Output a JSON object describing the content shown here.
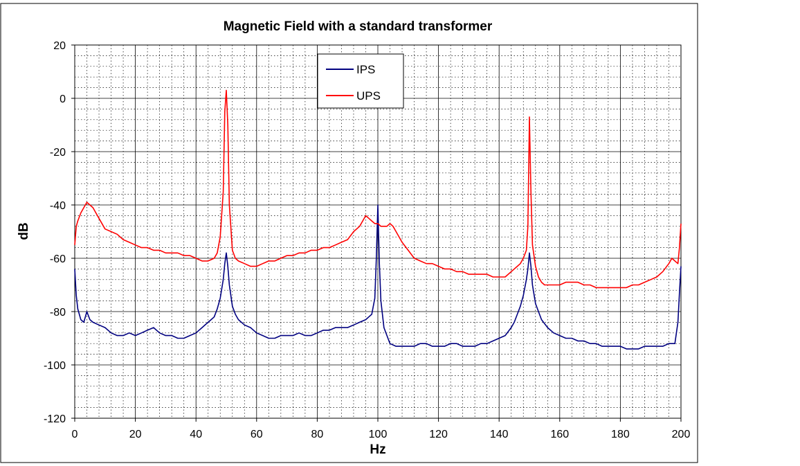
{
  "chart_data": {
    "type": "line",
    "title": "Magnetic Field with a standard transformer",
    "xlabel": "Hz",
    "ylabel": "dB",
    "xlim": [
      0,
      200
    ],
    "ylim": [
      -120,
      20
    ],
    "x_ticks": [
      0,
      20,
      40,
      60,
      80,
      100,
      120,
      140,
      160,
      180,
      200
    ],
    "y_ticks": [
      20,
      0,
      -20,
      -40,
      -60,
      -80,
      -100,
      -120
    ],
    "x_tick_labels": [
      "0",
      "20",
      "40",
      "60",
      "80",
      "100",
      "120",
      "140",
      "160",
      "180",
      "200"
    ],
    "y_tick_labels": [
      "20",
      "0",
      "-20",
      "-40",
      "-60",
      "-80",
      "-100",
      "-120"
    ],
    "grid": "on",
    "legend_position": "top-center",
    "series": [
      {
        "name": "IPS",
        "color": "#000080",
        "x": [
          0,
          0.5,
          1,
          2,
          3,
          4,
          5,
          6,
          8,
          10,
          12,
          14,
          16,
          18,
          20,
          22,
          24,
          26,
          28,
          30,
          32,
          34,
          36,
          38,
          40,
          42,
          44,
          45,
          46,
          47,
          48,
          49,
          49.5,
          50,
          50.5,
          51,
          52,
          53,
          54,
          56,
          58,
          60,
          62,
          64,
          66,
          68,
          70,
          72,
          74,
          76,
          78,
          80,
          82,
          84,
          86,
          88,
          90,
          92,
          94,
          96,
          97,
          98,
          99,
          99.5,
          100,
          100.5,
          101,
          102,
          103,
          104,
          106,
          108,
          110,
          112,
          114,
          116,
          118,
          120,
          122,
          124,
          126,
          128,
          130,
          132,
          134,
          136,
          138,
          140,
          142,
          144,
          145,
          146,
          147,
          148,
          149,
          149.5,
          150,
          150.5,
          151,
          152,
          153,
          154,
          156,
          158,
          160,
          162,
          164,
          166,
          168,
          170,
          172,
          174,
          176,
          178,
          180,
          182,
          184,
          186,
          188,
          190,
          192,
          194,
          196,
          198,
          199,
          199.5,
          200
        ],
        "y": [
          -64,
          -74,
          -79,
          -83,
          -84,
          -80,
          -83,
          -84,
          -85,
          -86,
          -88,
          -89,
          -89,
          -88,
          -89,
          -88,
          -87,
          -86,
          -88,
          -89,
          -89,
          -90,
          -90,
          -89,
          -88,
          -86,
          -84,
          -83,
          -82,
          -79,
          -75,
          -68,
          -62,
          -58,
          -63,
          -70,
          -78,
          -81,
          -83,
          -85,
          -86,
          -88,
          -89,
          -90,
          -90,
          -89,
          -89,
          -89,
          -88,
          -89,
          -89,
          -88,
          -87,
          -87,
          -86,
          -86,
          -86,
          -85,
          -84,
          -83,
          -82,
          -81,
          -75,
          -60,
          -40,
          -62,
          -76,
          -86,
          -89,
          -92,
          -93,
          -93,
          -93,
          -93,
          -92,
          -92,
          -93,
          -93,
          -93,
          -92,
          -92,
          -93,
          -93,
          -93,
          -92,
          -92,
          -91,
          -90,
          -89,
          -86,
          -84,
          -81,
          -78,
          -74,
          -68,
          -64,
          -58,
          -63,
          -70,
          -77,
          -80,
          -83,
          -86,
          -88,
          -89,
          -90,
          -90,
          -91,
          -91,
          -92,
          -92,
          -93,
          -93,
          -93,
          -93,
          -94,
          -94,
          -94,
          -93,
          -93,
          -93,
          -93,
          -92,
          -92,
          -84,
          -73,
          -63
        ]
      },
      {
        "name": "UPS",
        "color": "#ff0000",
        "x": [
          0,
          0.5,
          1,
          2,
          3,
          4,
          5,
          6,
          8,
          10,
          12,
          14,
          16,
          18,
          20,
          22,
          24,
          26,
          28,
          30,
          32,
          34,
          36,
          38,
          40,
          42,
          44,
          46,
          47,
          48,
          49,
          49.5,
          50,
          50.5,
          51,
          52,
          53,
          54,
          56,
          58,
          60,
          62,
          64,
          66,
          68,
          70,
          72,
          74,
          76,
          78,
          80,
          82,
          84,
          86,
          88,
          90,
          92,
          94,
          95,
          96,
          97,
          98,
          99,
          100,
          101,
          102,
          103,
          104,
          105,
          106,
          108,
          110,
          112,
          114,
          116,
          118,
          120,
          122,
          124,
          126,
          128,
          130,
          132,
          134,
          136,
          138,
          140,
          142,
          144,
          146,
          147,
          148,
          149,
          149.5,
          150,
          150.5,
          151,
          152,
          153,
          154,
          155,
          156,
          158,
          160,
          162,
          164,
          166,
          168,
          170,
          172,
          174,
          176,
          178,
          180,
          182,
          184,
          186,
          188,
          190,
          192,
          194,
          196,
          197,
          198,
          199,
          199.5,
          200
        ],
        "y": [
          -55,
          -48,
          -46,
          -43,
          -41,
          -39,
          -40,
          -41,
          -45,
          -49,
          -50,
          -51,
          -53,
          -54,
          -55,
          -56,
          -56,
          -57,
          -57,
          -58,
          -58,
          -58,
          -59,
          -59,
          -60,
          -61,
          -61,
          -60,
          -58,
          -52,
          -35,
          -5,
          3,
          -10,
          -40,
          -57,
          -60,
          -61,
          -62,
          -63,
          -63,
          -62,
          -61,
          -61,
          -60,
          -59,
          -59,
          -58,
          -58,
          -57,
          -57,
          -56,
          -56,
          -55,
          -54,
          -53,
          -50,
          -48,
          -46,
          -44,
          -45,
          -46,
          -47,
          -47,
          -48,
          -48,
          -48,
          -47,
          -48,
          -50,
          -54,
          -57,
          -60,
          -61,
          -62,
          -62,
          -63,
          -64,
          -64,
          -65,
          -65,
          -66,
          -66,
          -66,
          -66,
          -67,
          -67,
          -67,
          -65,
          -63,
          -62,
          -60,
          -57,
          -48,
          -7,
          -35,
          -55,
          -63,
          -67,
          -69,
          -70,
          -70,
          -70,
          -70,
          -69,
          -69,
          -69,
          -70,
          -70,
          -71,
          -71,
          -71,
          -71,
          -71,
          -71,
          -70,
          -70,
          -69,
          -68,
          -67,
          -65,
          -62,
          -60,
          -61,
          -62,
          -56,
          -47
        ]
      }
    ]
  }
}
